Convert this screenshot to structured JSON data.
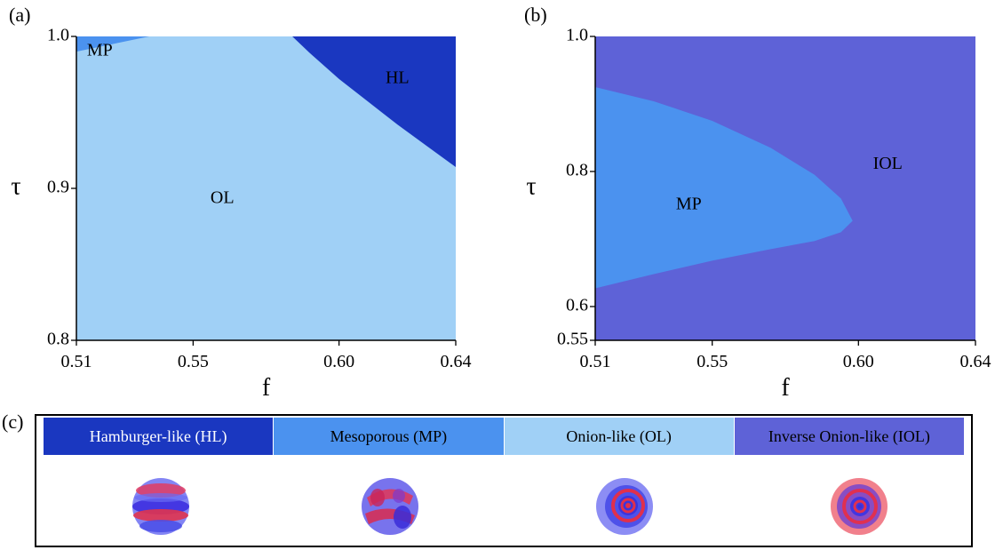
{
  "panels": [
    {
      "label": "(a)"
    },
    {
      "label": "(b)"
    },
    {
      "label": "(c)"
    }
  ],
  "colors": {
    "HL": "#1a37c0",
    "MP": "#4b92ef",
    "OL": "#a0d0f6",
    "IOL": "#5e62d7"
  },
  "legend": {
    "items": [
      {
        "label": "Hamburger-like (HL)",
        "key": "HL"
      },
      {
        "label": "Mesoporous (MP)",
        "key": "MP"
      },
      {
        "label": "Onion-like (OL)",
        "key": "OL"
      },
      {
        "label": "Inverse Onion-like (IOL)",
        "key": "IOL"
      }
    ],
    "morphology_icons": [
      "hamburger-sphere-icon",
      "mesoporous-sphere-icon",
      "onion-sphere-icon",
      "inverse-onion-sphere-icon"
    ]
  },
  "chart_data": [
    {
      "type": "area",
      "title": "",
      "xlabel": "f",
      "ylabel": "τ",
      "xlim": [
        0.51,
        0.64
      ],
      "ylim": [
        0.8,
        1.0
      ],
      "xticks": [
        "0.51",
        "0.55",
        "0.60",
        "0.64"
      ],
      "yticks": [
        "0.8",
        "0.9",
        "1.0"
      ],
      "regions": [
        {
          "name": "OL",
          "color_key": "OL",
          "region_label": "OL",
          "label_at": [
            0.56,
            0.893
          ]
        },
        {
          "name": "MP",
          "color_key": "MP",
          "region_label": "MP",
          "label_at": [
            0.518,
            0.99
          ],
          "boundary": {
            "x": [
              0.51,
              0.52,
              0.53,
              0.535
            ],
            "y": [
              0.99,
              0.994,
              0.998,
              1.0
            ]
          }
        },
        {
          "name": "HL",
          "color_key": "HL",
          "region_label": "HL",
          "label_at": [
            0.62,
            0.972
          ],
          "boundary": {
            "x": [
              0.584,
              0.59,
              0.6,
              0.61,
              0.62,
              0.63,
              0.64
            ],
            "y": [
              1.0,
              0.989,
              0.972,
              0.957,
              0.942,
              0.928,
              0.914
            ]
          }
        }
      ]
    },
    {
      "type": "area",
      "title": "",
      "xlabel": "f",
      "ylabel": "τ",
      "xlim": [
        0.51,
        0.64
      ],
      "ylim": [
        0.55,
        1.0
      ],
      "xticks": [
        "0.51",
        "0.55",
        "0.60",
        "0.64"
      ],
      "yticks": [
        "0.55",
        "0.6",
        "0.8",
        "1.0"
      ],
      "regions": [
        {
          "name": "IOL",
          "color_key": "IOL",
          "region_label": "IOL",
          "label_at": [
            0.61,
            0.81
          ]
        },
        {
          "name": "MP",
          "color_key": "MP",
          "region_label": "MP",
          "label_at": [
            0.542,
            0.75
          ],
          "boundary": {
            "x": [
              0.51,
              0.53,
              0.55,
              0.57,
              0.585,
              0.594,
              0.598,
              0.594,
              0.585,
              0.57,
              0.55,
              0.53,
              0.51
            ],
            "y": [
              0.925,
              0.904,
              0.875,
              0.835,
              0.795,
              0.76,
              0.727,
              0.71,
              0.697,
              0.685,
              0.668,
              0.648,
              0.627
            ]
          }
        }
      ]
    }
  ]
}
